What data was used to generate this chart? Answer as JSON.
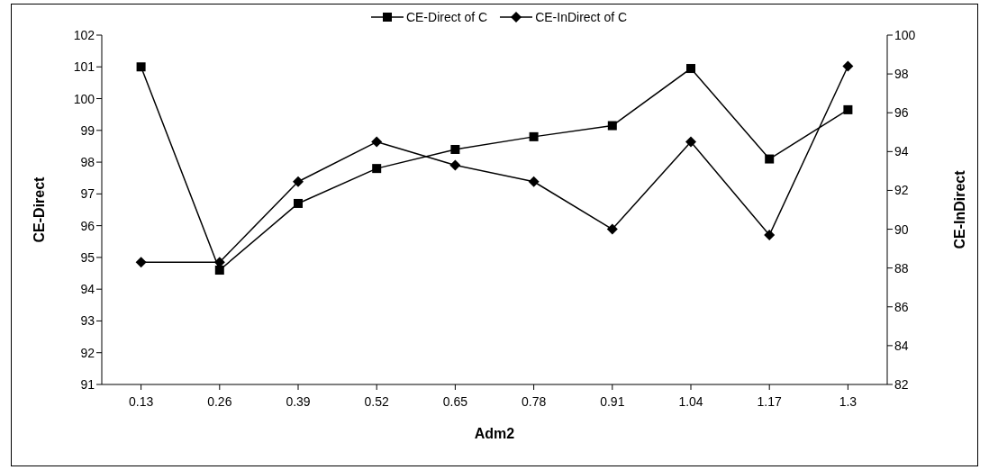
{
  "chart_data": {
    "type": "line",
    "categories": [
      "0.13",
      "0.26",
      "0.39",
      "0.52",
      "0.65",
      "0.78",
      "0.91",
      "1.04",
      "1.17",
      "1.3"
    ],
    "series": [
      {
        "name": "CE-Direct of C",
        "color": "#000000",
        "marker": "square",
        "values": [
          101,
          94.6,
          96.7,
          97.8,
          98.4,
          98.8,
          99.15,
          100.95,
          98.1,
          99.65
        ]
      },
      {
        "name": "CE-InDirect of C",
        "color": "#000000",
        "marker": "diamond",
        "axis": "y2",
        "values": [
          88.3,
          88.3,
          92.45,
          94.5,
          93.3,
          92.45,
          90.0,
          94.5,
          89.7,
          98.4
        ]
      }
    ],
    "xlabel": "Adm2",
    "ylabel": "CE-Direct",
    "y2label": "CE-InDirect",
    "ylim": [
      91,
      102
    ],
    "yticks": [
      91,
      92,
      93,
      94,
      95,
      96,
      97,
      98,
      99,
      100,
      101,
      102
    ],
    "y2lim": [
      82,
      100
    ],
    "y2ticks": [
      82,
      84,
      86,
      88,
      90,
      92,
      94,
      96,
      98,
      100
    ],
    "grid": false,
    "legend": "top",
    "line_style": "solid"
  }
}
